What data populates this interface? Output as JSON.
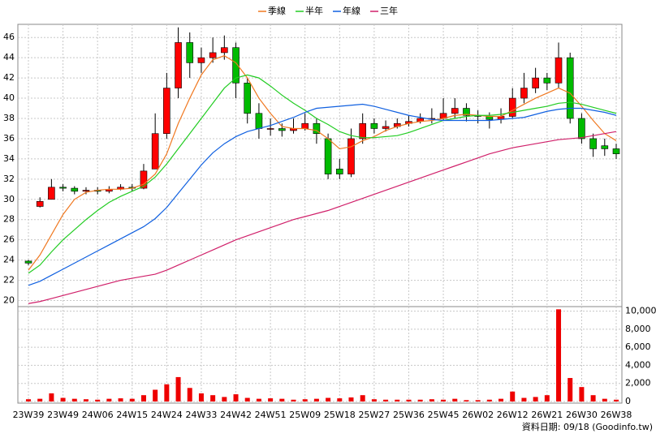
{
  "chart_data": {
    "type": "candlestick",
    "legend_position": "top",
    "grid": true,
    "categories": [
      "23W39",
      null,
      null,
      "23W49",
      null,
      null,
      "24W06",
      null,
      null,
      "24W15",
      null,
      null,
      "24W24",
      null,
      null,
      "24W33",
      null,
      null,
      "24W42",
      null,
      null,
      "24W51",
      null,
      null,
      "25W09",
      null,
      null,
      "25W18",
      null,
      null,
      "25W27",
      null,
      null,
      "25W36",
      null,
      null,
      "25W45",
      null,
      null,
      "26W02",
      null,
      null,
      "26W12",
      null,
      null,
      "26W21",
      null,
      null,
      "26W30",
      null,
      null,
      "26W38"
    ],
    "ylim": [
      19.4,
      47.3
    ],
    "yticks": [
      20,
      22,
      24,
      26,
      28,
      30,
      32,
      34,
      36,
      38,
      40,
      42,
      44,
      46
    ],
    "y2lim": [
      0,
      10500
    ],
    "y2ticks": [
      0,
      {
        "value": 2000,
        "label": "2,000"
      },
      {
        "value": 4000,
        "label": "4,000"
      },
      {
        "value": 6000,
        "label": "6,000"
      },
      {
        "value": 8000,
        "label": "8,000"
      },
      {
        "value": 10000,
        "label": "10,000"
      }
    ],
    "ohlc": {
      "up_color": "#ff0000",
      "down_color": "#00bb00",
      "open": [
        23.9,
        29.3,
        30.0,
        31.2,
        31.1,
        30.8,
        30.9,
        30.8,
        31.0,
        31.2,
        31.1,
        33.0,
        36.5,
        41.0,
        45.5,
        43.5,
        44.0,
        44.5,
        45.0,
        41.5,
        38.5,
        37.0,
        37.0,
        36.8,
        37.0,
        37.5,
        36.0,
        33.0,
        32.5,
        36.0,
        37.5,
        37.0,
        37.2,
        37.5,
        37.7,
        38.0,
        38.0,
        38.5,
        39.0,
        38.3,
        38.2,
        37.9,
        38.2,
        40.0,
        41.0,
        42.0,
        41.5,
        44.0,
        38.0,
        36.0,
        35.3,
        35.0
      ],
      "high": [
        24.0,
        30.2,
        32.0,
        31.5,
        31.3,
        31.2,
        31.2,
        31.3,
        31.5,
        31.5,
        33.5,
        38.5,
        42.5,
        47.0,
        46.5,
        45.0,
        46.0,
        46.2,
        45.5,
        42.0,
        39.5,
        38.0,
        37.5,
        38.0,
        38.5,
        38.0,
        36.5,
        34.0,
        37.0,
        38.5,
        38.0,
        37.8,
        38.0,
        38.3,
        38.5,
        39.0,
        40.0,
        40.0,
        39.5,
        38.8,
        38.6,
        39.0,
        41.0,
        42.5,
        43.0,
        42.5,
        45.5,
        44.5,
        38.5,
        36.5,
        36.0,
        35.5
      ],
      "low": [
        23.5,
        29.2,
        30.0,
        30.8,
        30.5,
        30.5,
        30.5,
        30.6,
        30.9,
        30.8,
        31.0,
        33.0,
        36.0,
        40.0,
        42.0,
        42.5,
        43.5,
        43.8,
        40.0,
        37.5,
        36.0,
        36.3,
        36.2,
        36.5,
        36.8,
        35.5,
        32.0,
        32.0,
        32.2,
        35.5,
        36.5,
        36.7,
        37.0,
        37.2,
        37.5,
        37.5,
        37.8,
        38.0,
        37.7,
        37.5,
        37.0,
        37.5,
        38.0,
        39.5,
        40.5,
        40.8,
        41.0,
        37.5,
        35.5,
        34.2,
        34.3,
        34.0
      ],
      "close": [
        23.7,
        29.8,
        31.2,
        31.1,
        30.8,
        30.9,
        30.8,
        31.0,
        31.2,
        31.1,
        32.8,
        36.5,
        41.0,
        45.5,
        43.5,
        44.0,
        44.5,
        45.0,
        41.5,
        38.5,
        37.0,
        37.0,
        36.8,
        37.0,
        37.5,
        36.5,
        32.5,
        32.5,
        36.0,
        37.5,
        37.0,
        37.2,
        37.5,
        37.7,
        38.0,
        38.0,
        38.5,
        39.0,
        38.3,
        38.2,
        37.9,
        38.2,
        40.0,
        41.0,
        42.0,
        41.5,
        44.0,
        38.0,
        36.0,
        35.0,
        35.0,
        34.5
      ]
    },
    "volume": {
      "axis": "y2",
      "color": "#ee0000",
      "values": [
        250,
        300,
        900,
        400,
        300,
        250,
        200,
        300,
        350,
        300,
        700,
        1300,
        1900,
        2700,
        1500,
        900,
        700,
        500,
        800,
        400,
        300,
        350,
        300,
        200,
        250,
        300,
        400,
        350,
        450,
        700,
        250,
        200,
        200,
        200,
        200,
        250,
        200,
        300,
        150,
        150,
        200,
        300,
        1100,
        400,
        500,
        700,
        10200,
        2600,
        1600,
        700,
        300,
        200
      ]
    },
    "series": [
      {
        "name": "季線",
        "color": "#f07820",
        "values": [
          23,
          24.5,
          26.5,
          28.5,
          30,
          30.7,
          30.9,
          31,
          31,
          31.1,
          31.5,
          32.5,
          34.5,
          37.5,
          40,
          42.3,
          43.8,
          44.2,
          43.5,
          42,
          40,
          38.5,
          37.2,
          37,
          37,
          36.8,
          36,
          35,
          35.2,
          35.8,
          36.2,
          36.8,
          37.2,
          37.5,
          37.7,
          37.8,
          38,
          38.3,
          38.4,
          38.3,
          38.2,
          38.2,
          38.8,
          39.4,
          40,
          40.5,
          41,
          40.5,
          39.2,
          37.8,
          36.5,
          35.8
        ]
      },
      {
        "name": "半年",
        "color": "#22cc22",
        "values": [
          22.7,
          23.5,
          24.8,
          26,
          27,
          28,
          28.9,
          29.7,
          30.3,
          30.8,
          31.3,
          32.2,
          33.5,
          35,
          36.5,
          38,
          39.5,
          41,
          42,
          42.3,
          42,
          41.2,
          40.3,
          39.5,
          38.8,
          38,
          37.4,
          36.7,
          36.3,
          36.1,
          36.1,
          36.2,
          36.3,
          36.6,
          37,
          37.4,
          37.8,
          38,
          38.2,
          38.3,
          38.3,
          38.4,
          38.6,
          38.8,
          39,
          39.2,
          39.5,
          39.6,
          39.4,
          39.1,
          38.8,
          38.5
        ]
      },
      {
        "name": "年線",
        "color": "#1060e0",
        "values": [
          21.5,
          21.9,
          22.5,
          23.1,
          23.7,
          24.3,
          24.9,
          25.5,
          26.1,
          26.7,
          27.3,
          28.1,
          29.2,
          30.6,
          32,
          33.4,
          34.6,
          35.5,
          36.2,
          36.7,
          37,
          37.3,
          37.7,
          38.1,
          38.6,
          39,
          39.1,
          39.2,
          39.3,
          39.4,
          39.2,
          38.9,
          38.6,
          38.3,
          38.1,
          37.9,
          37.8,
          37.8,
          37.8,
          37.8,
          37.8,
          37.9,
          38,
          38.1,
          38.4,
          38.7,
          38.9,
          39,
          39,
          38.8,
          38.6,
          38.3
        ]
      },
      {
        "name": "三年",
        "color": "#d0206a",
        "values": [
          19.7,
          19.9,
          20.2,
          20.5,
          20.8,
          21.1,
          21.4,
          21.7,
          22,
          22.2,
          22.4,
          22.6,
          23,
          23.5,
          24,
          24.5,
          25,
          25.5,
          26,
          26.4,
          26.8,
          27.2,
          27.6,
          28,
          28.3,
          28.6,
          28.9,
          29.3,
          29.7,
          30.1,
          30.5,
          30.9,
          31.3,
          31.7,
          32.1,
          32.5,
          32.9,
          33.3,
          33.7,
          34.1,
          34.5,
          34.8,
          35.1,
          35.3,
          35.5,
          35.7,
          35.9,
          36,
          36.1,
          36.3,
          36.5,
          36.7
        ]
      }
    ],
    "footnote": "資料日期: 09/18 (Goodinfo.tw)"
  }
}
